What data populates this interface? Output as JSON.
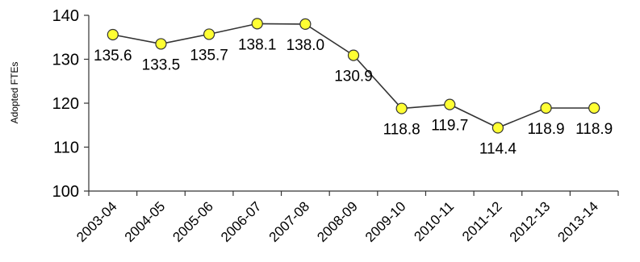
{
  "chart_data": {
    "type": "line",
    "title": "",
    "xlabel": "",
    "ylabel": "Adopted FTEs",
    "categories": [
      "2003-04",
      "2004-05",
      "2005-06",
      "2006-07",
      "2007-08",
      "2008-09",
      "2009-10",
      "2010-11",
      "2011-12",
      "2012-13",
      "2013-14"
    ],
    "series": [
      {
        "values": [
          135.6,
          133.5,
          135.7,
          138.1,
          138.0,
          130.9,
          118.8,
          119.7,
          114.4,
          118.9,
          118.9
        ],
        "labels": [
          "135.6",
          "133.5",
          "135.7",
          "138.1",
          "138.0",
          "130.9",
          "118.8",
          "119.7",
          "114.4",
          "118.9",
          "118.9"
        ]
      }
    ],
    "ylim": [
      100,
      140
    ],
    "yticks": [
      "100",
      "110",
      "120",
      "130",
      "140"
    ],
    "grid": false,
    "legend": "none",
    "line_color": "#333333",
    "marker_fill": "#ffff33",
    "marker_stroke": "#333333"
  }
}
